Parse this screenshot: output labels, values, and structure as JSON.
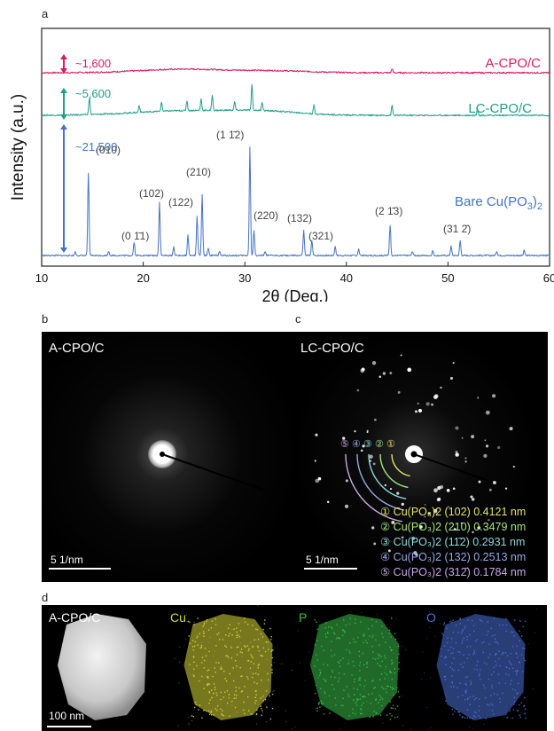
{
  "panel_a": {
    "label": "a",
    "chart_data": {
      "type": "line",
      "xlabel": "2θ (Deg.)",
      "ylabel": "Intensity (a.u.)",
      "xlim": [
        10,
        60
      ],
      "xticks": [
        "10",
        "20",
        "30",
        "40",
        "50",
        "60"
      ],
      "series": [
        {
          "name": "A-CPO/C",
          "color": "#d81b60",
          "scale_label": "~1,600",
          "peaks": [
            [
              44.5,
              0.6
            ]
          ]
        },
        {
          "name": "LC-CPO/C",
          "color": "#1f9e89",
          "scale_label": "~5,600",
          "peaks": [
            [
              14.7,
              2.4
            ],
            [
              19.6,
              1.0
            ],
            [
              21.8,
              1.3
            ],
            [
              24.3,
              1.4
            ],
            [
              25.7,
              1.6
            ],
            [
              26.8,
              2.2
            ],
            [
              29.0,
              1.2
            ],
            [
              30.7,
              3.6
            ],
            [
              31.7,
              1.2
            ],
            [
              36.8,
              1.2
            ],
            [
              44.5,
              1.4
            ],
            [
              52.9,
              1.0
            ]
          ]
        },
        {
          "name": "Bare Cu(PO3)2",
          "color": "#4472c4",
          "scale_label": "~21,500",
          "peaks": [
            [
              13.3,
              0.5
            ],
            [
              14.6,
              11.5
            ],
            [
              16.6,
              0.6
            ],
            [
              19.1,
              1.9
            ],
            [
              21.6,
              7.5
            ],
            [
              23.0,
              1.2
            ],
            [
              24.4,
              2.9
            ],
            [
              25.3,
              5.5
            ],
            [
              25.8,
              8.5
            ],
            [
              26.4,
              1.1
            ],
            [
              27.5,
              0.6
            ],
            [
              30.5,
              15.3
            ],
            [
              30.9,
              3.5
            ],
            [
              32.0,
              0.5
            ],
            [
              35.8,
              3.5
            ],
            [
              36.6,
              2.1
            ],
            [
              38.9,
              1.3
            ],
            [
              41.2,
              0.9
            ],
            [
              44.3,
              4.3
            ],
            [
              46.5,
              0.6
            ],
            [
              48.5,
              0.7
            ],
            [
              50.3,
              1.3
            ],
            [
              51.2,
              2.1
            ],
            [
              54.8,
              0.6
            ],
            [
              57.5,
              0.8
            ]
          ]
        }
      ],
      "annotations": [
        "(010)",
        "(0 1̄1)",
        "(102)",
        "(122)",
        "(210)",
        "(1 1̄2)",
        "(220)",
        "(132)",
        "(321)",
        "(2 1̄3)",
        "(31 2̄)"
      ]
    }
  },
  "panel_b": {
    "label": "b",
    "title": "A-CPO/C",
    "scalebar": "5  1/nm"
  },
  "panel_c": {
    "label": "c",
    "title": "LC-CPO/C",
    "scalebar": "5  1/nm",
    "ring_markers": [
      "⑤",
      "④",
      "③",
      "②",
      "①"
    ],
    "legend": [
      {
        "text": "① Cu(PO₃)2 (102) 0.4121 nm",
        "color": "#e6e36a"
      },
      {
        "text": "② Cu(PO₃)2 (210) 0.3479 nm",
        "color": "#a4e67a"
      },
      {
        "text": "③ Cu(PO₃)2 (11̄2) 0.2931 nm",
        "color": "#8ed8dc"
      },
      {
        "text": "④ Cu(PO₃)2 (132) 0.2513 nm",
        "color": "#9aa8e8"
      },
      {
        "text": "⑤ Cu(PO₃)2 (312̄) 0.1784 nm",
        "color": "#c8a8e8"
      }
    ]
  },
  "panel_d": {
    "label": "d",
    "tiles": [
      {
        "title": "A-CPO/C",
        "color": "#ffffff"
      },
      {
        "title": "Cu",
        "color": "#d8d83a"
      },
      {
        "title": "P",
        "color": "#3bbf4a"
      },
      {
        "title": "O",
        "color": "#4a70d8"
      }
    ],
    "scalebar": "100 nm"
  }
}
